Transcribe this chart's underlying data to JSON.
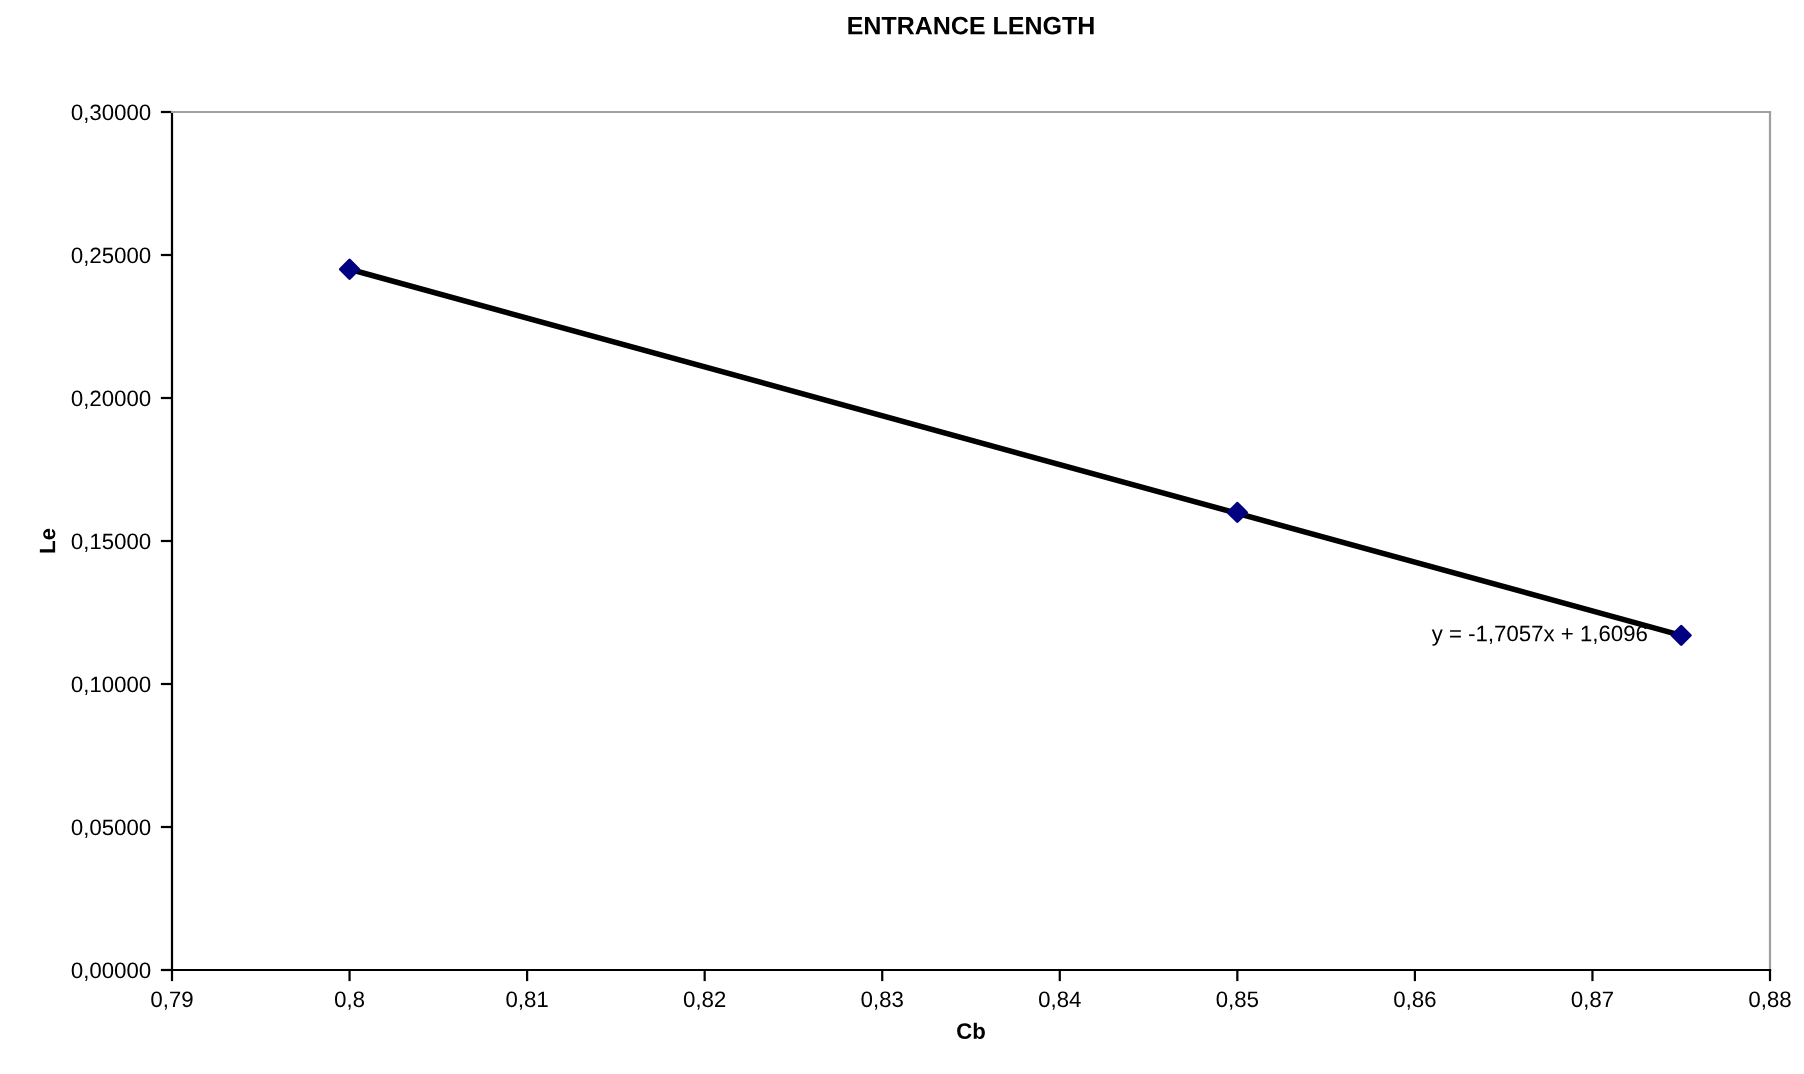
{
  "chart_data": {
    "type": "scatter",
    "title": "ENTRANCE LENGTH",
    "xlabel": "Cb",
    "ylabel": "Le",
    "xlim": [
      0.79,
      0.88
    ],
    "xticks": [
      {
        "value": 0.79,
        "label": "0,79"
      },
      {
        "value": 0.8,
        "label": "0,8"
      },
      {
        "value": 0.81,
        "label": "0,81"
      },
      {
        "value": 0.82,
        "label": "0,82"
      },
      {
        "value": 0.83,
        "label": "0,83"
      },
      {
        "value": 0.84,
        "label": "0,84"
      },
      {
        "value": 0.85,
        "label": "0,85"
      },
      {
        "value": 0.86,
        "label": "0,86"
      },
      {
        "value": 0.87,
        "label": "0,87"
      },
      {
        "value": 0.88,
        "label": "0,88"
      }
    ],
    "ylim": [
      0,
      0.3
    ],
    "yticks": [
      {
        "value": 0,
        "label": "0,00000"
      },
      {
        "value": 0.05,
        "label": "0,05000"
      },
      {
        "value": 0.1,
        "label": "0,10000"
      },
      {
        "value": 0.15,
        "label": "0,15000"
      },
      {
        "value": 0.2,
        "label": "0,20000"
      },
      {
        "value": 0.25,
        "label": "0,25000"
      },
      {
        "value": 0.3,
        "label": "0,30000"
      }
    ],
    "grid": false,
    "legend": false,
    "series": [
      {
        "type": "line",
        "color": "#000000",
        "x": [
          0.8,
          0.875
        ],
        "values": [
          0.245,
          0.117
        ],
        "marker": "none",
        "line_style": "solid"
      },
      {
        "color": "#000080",
        "x": [
          0.8,
          0.85,
          0.875
        ],
        "values": [
          0.245,
          0.16,
          0.117
        ],
        "marker": "diamond"
      }
    ],
    "annotations": [
      {
        "text": "y = -1,7057x + 1,6096",
        "x": 0.875,
        "y": 0.117
      }
    ]
  }
}
